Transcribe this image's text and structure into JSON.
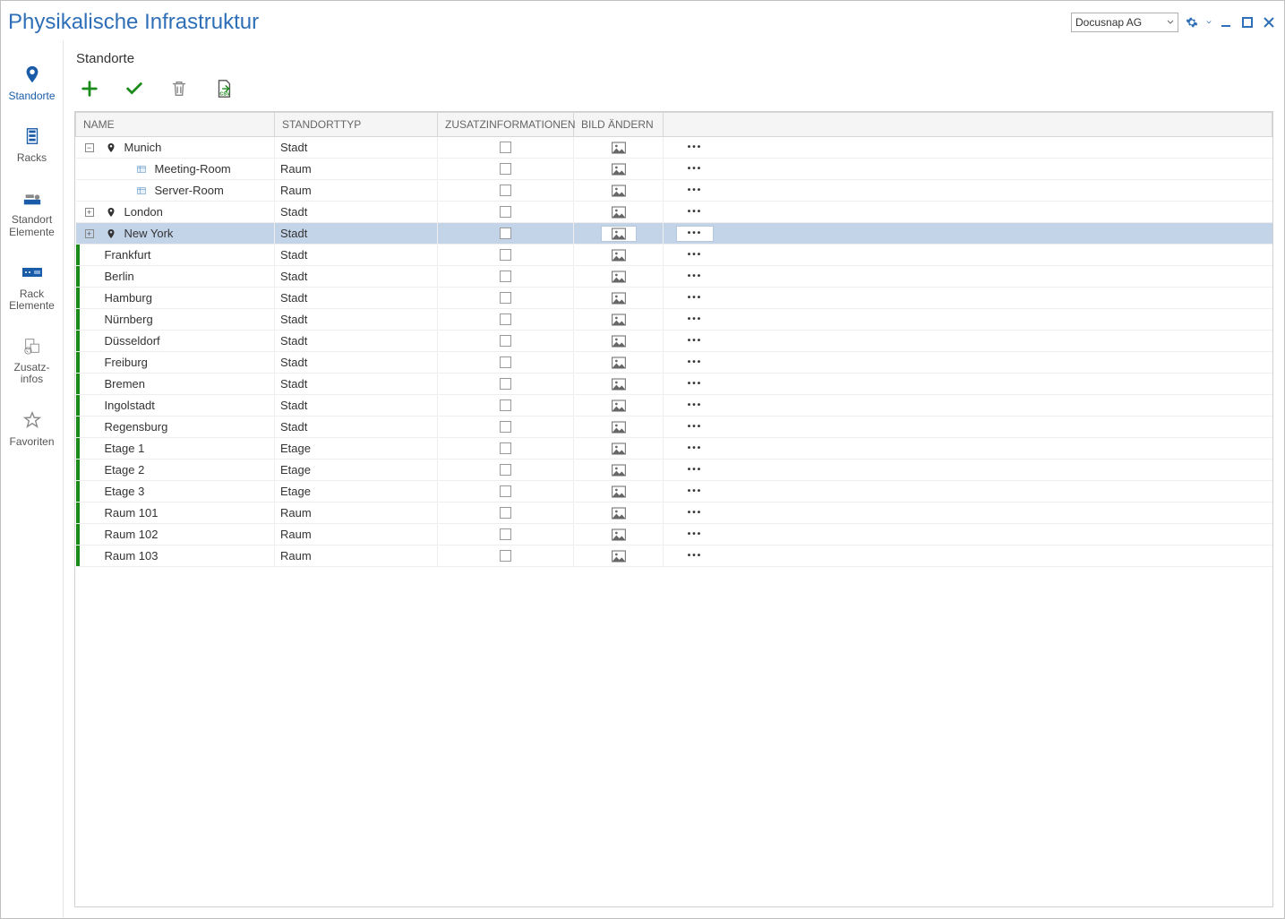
{
  "window": {
    "title": "Physikalische Infrastruktur",
    "tenant_selected": "Docusnap AG"
  },
  "sidebar": {
    "items": [
      {
        "key": "standorte",
        "label": "Standorte",
        "icon": "pin",
        "active": true
      },
      {
        "key": "racks",
        "label": "Racks",
        "icon": "rack",
        "active": false
      },
      {
        "key": "standort-elemente",
        "label": "Standort Elemente",
        "icon": "server-stack",
        "active": false
      },
      {
        "key": "rack-elemente",
        "label": "Rack Elemente",
        "icon": "rack-unit",
        "active": false
      },
      {
        "key": "zusatz-infos",
        "label": "Zusatz-\ninfos",
        "icon": "info",
        "active": false
      },
      {
        "key": "favoriten",
        "label": "Favoriten",
        "icon": "star",
        "active": false
      }
    ]
  },
  "section": {
    "title": "Standorte"
  },
  "toolbar": {
    "add_title": "Add",
    "confirm_title": "Confirm",
    "delete_title": "Delete",
    "export_title": "Export CSV"
  },
  "table": {
    "columns": {
      "name": "Name",
      "standorttyp": "Standorttyp",
      "zusatz": "Zusatzinformationen",
      "bild": "Bild ändern",
      "actions": ""
    },
    "rows": [
      {
        "name": "Munich",
        "type": "Stadt",
        "indent": 0,
        "expander": "-",
        "icon": "pin",
        "green": false,
        "selected": false
      },
      {
        "name": "Meeting-Room",
        "type": "Raum",
        "indent": 2,
        "expander": null,
        "icon": "room",
        "green": false,
        "selected": false
      },
      {
        "name": "Server-Room",
        "type": "Raum",
        "indent": 2,
        "expander": null,
        "icon": "room",
        "green": false,
        "selected": false
      },
      {
        "name": "London",
        "type": "Stadt",
        "indent": 0,
        "expander": "+",
        "icon": "pin",
        "green": false,
        "selected": false
      },
      {
        "name": "New York",
        "type": "Stadt",
        "indent": 0,
        "expander": "+",
        "icon": "pin",
        "green": false,
        "selected": true
      },
      {
        "name": "Frankfurt",
        "type": "Stadt",
        "indent": 0,
        "expander": null,
        "icon": null,
        "green": true,
        "selected": false
      },
      {
        "name": "Berlin",
        "type": "Stadt",
        "indent": 0,
        "expander": null,
        "icon": null,
        "green": true,
        "selected": false
      },
      {
        "name": "Hamburg",
        "type": "Stadt",
        "indent": 0,
        "expander": null,
        "icon": null,
        "green": true,
        "selected": false
      },
      {
        "name": "Nürnberg",
        "type": "Stadt",
        "indent": 0,
        "expander": null,
        "icon": null,
        "green": true,
        "selected": false
      },
      {
        "name": "Düsseldorf",
        "type": "Stadt",
        "indent": 0,
        "expander": null,
        "icon": null,
        "green": true,
        "selected": false
      },
      {
        "name": "Freiburg",
        "type": "Stadt",
        "indent": 0,
        "expander": null,
        "icon": null,
        "green": true,
        "selected": false
      },
      {
        "name": "Bremen",
        "type": "Stadt",
        "indent": 0,
        "expander": null,
        "icon": null,
        "green": true,
        "selected": false
      },
      {
        "name": "Ingolstadt",
        "type": "Stadt",
        "indent": 0,
        "expander": null,
        "icon": null,
        "green": true,
        "selected": false
      },
      {
        "name": "Regensburg",
        "type": "Stadt",
        "indent": 0,
        "expander": null,
        "icon": null,
        "green": true,
        "selected": false
      },
      {
        "name": "Etage 1",
        "type": "Etage",
        "indent": 0,
        "expander": null,
        "icon": null,
        "green": true,
        "selected": false
      },
      {
        "name": "Etage 2",
        "type": "Etage",
        "indent": 0,
        "expander": null,
        "icon": null,
        "green": true,
        "selected": false
      },
      {
        "name": "Etage 3",
        "type": "Etage",
        "indent": 0,
        "expander": null,
        "icon": null,
        "green": true,
        "selected": false
      },
      {
        "name": "Raum 101",
        "type": "Raum",
        "indent": 0,
        "expander": null,
        "icon": null,
        "green": true,
        "selected": false
      },
      {
        "name": "Raum 102",
        "type": "Raum",
        "indent": 0,
        "expander": null,
        "icon": null,
        "green": true,
        "selected": false
      },
      {
        "name": "Raum 103",
        "type": "Raum",
        "indent": 0,
        "expander": null,
        "icon": null,
        "green": true,
        "selected": false
      }
    ]
  },
  "colors": {
    "title": "#2f6fb7",
    "green": "#1a8a1a",
    "selected_row": "#c3d3e8",
    "border": "#d0d0d0"
  }
}
